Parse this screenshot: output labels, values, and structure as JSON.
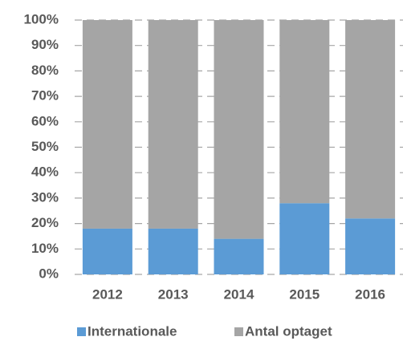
{
  "chart_data": {
    "type": "stacked_bar",
    "categories": [
      "2012",
      "2013",
      "2014",
      "2015",
      "2016"
    ],
    "series": [
      {
        "name": "Internationale",
        "color": "#5b9bd5",
        "values": [
          18,
          18,
          14,
          28,
          22
        ]
      },
      {
        "name": "Antal optaget",
        "color": "#a5a5a5",
        "values": [
          82,
          82,
          86,
          72,
          78
        ]
      }
    ],
    "ylim": [
      0,
      100
    ],
    "yticks": [
      {
        "value": 0,
        "label": "0%"
      },
      {
        "value": 10,
        "label": "10%"
      },
      {
        "value": 20,
        "label": "20%"
      },
      {
        "value": 30,
        "label": "30%"
      },
      {
        "value": 40,
        "label": "40%"
      },
      {
        "value": 50,
        "label": "50%"
      },
      {
        "value": 60,
        "label": "60%"
      },
      {
        "value": 70,
        "label": "70%"
      },
      {
        "value": 80,
        "label": "80%"
      },
      {
        "value": 90,
        "label": "90%"
      },
      {
        "value": 100,
        "label": "100%"
      }
    ],
    "grid": true,
    "legend": "bottom"
  }
}
